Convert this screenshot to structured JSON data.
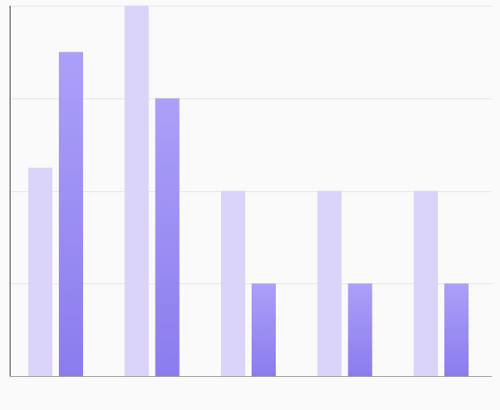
{
  "chart_data": {
    "type": "bar",
    "categories": [
      "",
      "",
      "",
      "",
      ""
    ],
    "series": [
      {
        "values": [
          2.25,
          4,
          2,
          2,
          2
        ],
        "color": "#dad4f8"
      },
      {
        "values": [
          3.5,
          3,
          1,
          1,
          1
        ],
        "color_top": "#aba0f8",
        "color_bottom": "#8b7cee"
      }
    ],
    "ylim": [
      0,
      4
    ],
    "grid": true,
    "legend": "none",
    "colors": {
      "background": "#fafafa",
      "grid": "#e4e4e4",
      "axis": "#333333",
      "baseline": "#999999"
    }
  }
}
